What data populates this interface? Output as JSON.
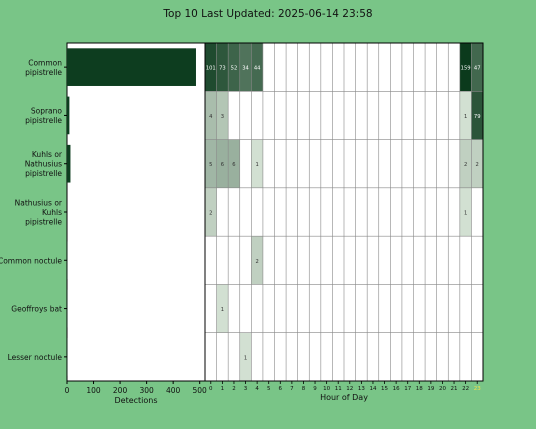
{
  "chart_data": [
    {
      "type": "bar",
      "orientation": "horizontal",
      "title": "Top 10 Last Updated: 2025-06-14 23:58",
      "xlabel": "Detections",
      "categories": [
        [
          "Common",
          "pipistrelle"
        ],
        [
          "Soprano",
          "pipistrelle"
        ],
        [
          "Kuhls or",
          "Nathusius",
          "pipistrelle"
        ],
        [
          "Nathusius or",
          "Kuhls",
          "pipistrelle"
        ],
        [
          "Common noctule"
        ],
        [
          "Geoffroys bat"
        ],
        [
          "Lesser noctule"
        ]
      ],
      "values": [
        486,
        9,
        13,
        0,
        1,
        1,
        1
      ],
      "xlim": [
        0,
        520
      ],
      "xticks": [
        0,
        100,
        200,
        300,
        400,
        500
      ],
      "bar_color": "#0d3d1f"
    },
    {
      "type": "heatmap",
      "xlabel": "Hour of Day",
      "x": [
        "0",
        "1",
        "2",
        "3",
        "4",
        "5",
        "6",
        "7",
        "8",
        "9",
        "10",
        "11",
        "12",
        "13",
        "14",
        "15",
        "16",
        "17",
        "18",
        "19",
        "20",
        "21",
        "22",
        "23"
      ],
      "highlight_tick": "23",
      "highlight_color": "#f2e24a",
      "cells": [
        [
          [
            0,
            101
          ],
          [
            1,
            73
          ],
          [
            2,
            52
          ],
          [
            3,
            34
          ],
          [
            4,
            44
          ],
          [
            22,
            159
          ],
          [
            23,
            47
          ]
        ],
        [
          [
            0,
            4
          ],
          [
            1,
            3
          ],
          [
            22,
            1
          ],
          [
            23,
            79
          ]
        ],
        [
          [
            0,
            5
          ],
          [
            1,
            6
          ],
          [
            2,
            6
          ],
          [
            4,
            1
          ],
          [
            22,
            2
          ],
          [
            23,
            2
          ]
        ],
        [
          [
            0,
            2
          ],
          [
            22,
            1
          ]
        ],
        [
          [
            4,
            2
          ]
        ],
        [
          [
            1,
            1
          ]
        ],
        [
          [
            3,
            1
          ]
        ]
      ]
    }
  ]
}
